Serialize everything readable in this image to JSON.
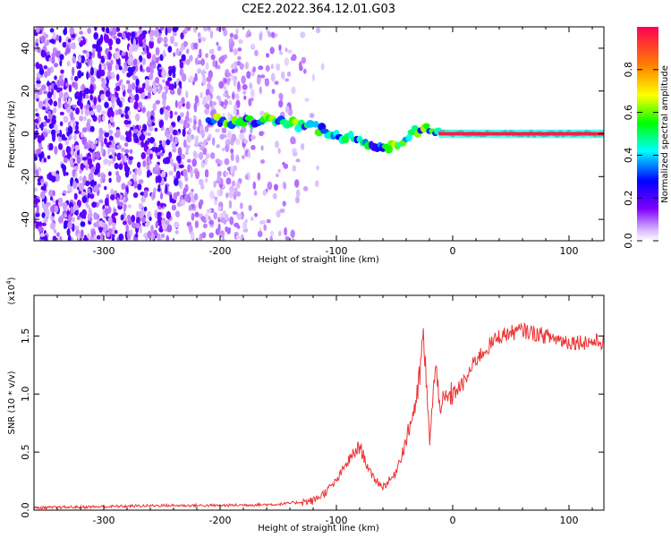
{
  "title": "C2E2.2022.364.12.01.G03",
  "colors": {
    "snr_line": "#ee3333",
    "axis": "#000000"
  },
  "chart_data": [
    {
      "type": "heatmap",
      "xlabel": "Height of straight line (km)",
      "ylabel": "Frequency (Hz)",
      "xlim": [
        -360,
        130
      ],
      "ylim": [
        -50,
        50
      ],
      "xticks": [
        -300,
        -200,
        -100,
        0,
        100
      ],
      "yticks": [
        -40,
        -20,
        0,
        20,
        40
      ],
      "colorbar": {
        "label": "Normalized spectral amplitude",
        "range": [
          0,
          1
        ],
        "ticks": [
          "0.0",
          "0.2",
          "0.4",
          "0.6",
          "0.8"
        ],
        "colormap": "rainbow (white-violet-blue-cyan-green-yellow-red)"
      },
      "signal_trace": [
        {
          "x": -210,
          "y": 6
        },
        {
          "x": -180,
          "y": 5
        },
        {
          "x": -150,
          "y": 6
        },
        {
          "x": -120,
          "y": 3
        },
        {
          "x": -100,
          "y": 0
        },
        {
          "x": -80,
          "y": -4
        },
        {
          "x": -60,
          "y": -6
        },
        {
          "x": -45,
          "y": -5
        },
        {
          "x": -35,
          "y": 1
        },
        {
          "x": -25,
          "y": 3
        },
        {
          "x": -15,
          "y": 1
        },
        {
          "x": 0,
          "y": 0
        },
        {
          "x": 130,
          "y": 0
        }
      ],
      "noise_region_x": [
        -360,
        -150
      ]
    },
    {
      "type": "line",
      "xlabel": "Height of straight line (km)",
      "ylabel": "SNR (10 * v/v)",
      "scale_label": "(x10",
      "scale_exponent": "4",
      "xlim": [
        -360,
        130
      ],
      "ylim": [
        0,
        1.85
      ],
      "xticks": [
        -300,
        -200,
        -100,
        0,
        100
      ],
      "yticks": [
        "0.0",
        "0.5",
        "1.0",
        "1.5"
      ],
      "series": [
        {
          "values_x": [
            -360,
            -300,
            -250,
            -200,
            -150,
            -120,
            -110,
            -100,
            -90,
            -80,
            -70,
            -60,
            -50,
            -40,
            -30,
            -25,
            -20,
            -15,
            -10,
            0,
            10,
            20,
            30,
            40,
            60,
            80,
            100,
            130
          ],
          "values_y": [
            0.02,
            0.03,
            0.04,
            0.04,
            0.05,
            0.08,
            0.15,
            0.25,
            0.42,
            0.55,
            0.3,
            0.2,
            0.3,
            0.6,
            1.0,
            1.5,
            0.6,
            1.2,
            0.9,
            1.0,
            1.1,
            1.3,
            1.4,
            1.5,
            1.55,
            1.5,
            1.45,
            1.45
          ]
        }
      ]
    }
  ]
}
